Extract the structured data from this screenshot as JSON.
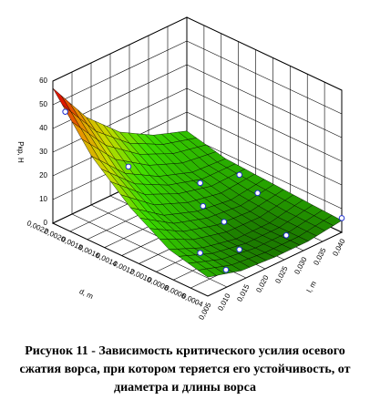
{
  "chart_data": {
    "type": "surface",
    "xlabel": "d, m",
    "ylabel": "l, m",
    "zlabel": "Pкр, Н",
    "xlim": [
      0.0004,
      0.0022
    ],
    "ylim": [
      0.005,
      0.04
    ],
    "zlim": [
      0,
      60
    ],
    "xticks": [
      {
        "value": 0.0004,
        "label": "0,0004"
      },
      {
        "value": 0.0006,
        "label": "0,0006"
      },
      {
        "value": 0.0008,
        "label": "0,0008"
      },
      {
        "value": 0.001,
        "label": "0,0010"
      },
      {
        "value": 0.0012,
        "label": "0,0012"
      },
      {
        "value": 0.0014,
        "label": "0,0014"
      },
      {
        "value": 0.0016,
        "label": "0,0016"
      },
      {
        "value": 0.0018,
        "label": "0,0018"
      },
      {
        "value": 0.002,
        "label": "0,0020"
      },
      {
        "value": 0.0022,
        "label": "0,0022"
      }
    ],
    "yticks": [
      {
        "value": 0.005,
        "label": "0,005"
      },
      {
        "value": 0.01,
        "label": "0,010"
      },
      {
        "value": 0.015,
        "label": "0,015"
      },
      {
        "value": 0.02,
        "label": "0,020"
      },
      {
        "value": 0.025,
        "label": "0,025"
      },
      {
        "value": 0.03,
        "label": "0,030"
      },
      {
        "value": 0.035,
        "label": "0,035"
      },
      {
        "value": 0.04,
        "label": "0,040"
      }
    ],
    "zticks": [
      0,
      10,
      20,
      30,
      40,
      50,
      60
    ],
    "surface": {
      "d": [
        0.0004,
        0.00085,
        0.0013,
        0.00175,
        0.0022
      ],
      "l": [
        0.005,
        0.01375,
        0.0225,
        0.03125,
        0.04
      ],
      "z": [
        [
          8,
          4,
          3,
          3,
          5
        ],
        [
          12,
          6,
          3,
          3,
          6
        ],
        [
          22,
          12,
          7,
          5,
          7
        ],
        [
          36,
          22,
          14,
          9,
          8
        ],
        [
          57,
          38,
          25,
          17,
          12
        ]
      ]
    },
    "points": {
      "x": [
        0.0021,
        0.0019,
        0.0013,
        0.0008,
        0.0016,
        0.0011,
        0.0007,
        0.0012,
        0.0006,
        0.0005,
        0.0004,
        0.0015
      ],
      "y": [
        0.006,
        0.018,
        0.024,
        0.012,
        0.03,
        0.025,
        0.02,
        0.036,
        0.03,
        0.012,
        0.04,
        0.038
      ],
      "z": [
        48,
        19,
        8,
        6,
        8,
        4,
        3,
        6,
        3,
        4,
        6,
        7
      ]
    }
  },
  "caption": "Рисунок 11 - Зависимость критического усилия осевого сжатия ворса, при котором теряется его устойчивость, от диаметра и длины ворса"
}
